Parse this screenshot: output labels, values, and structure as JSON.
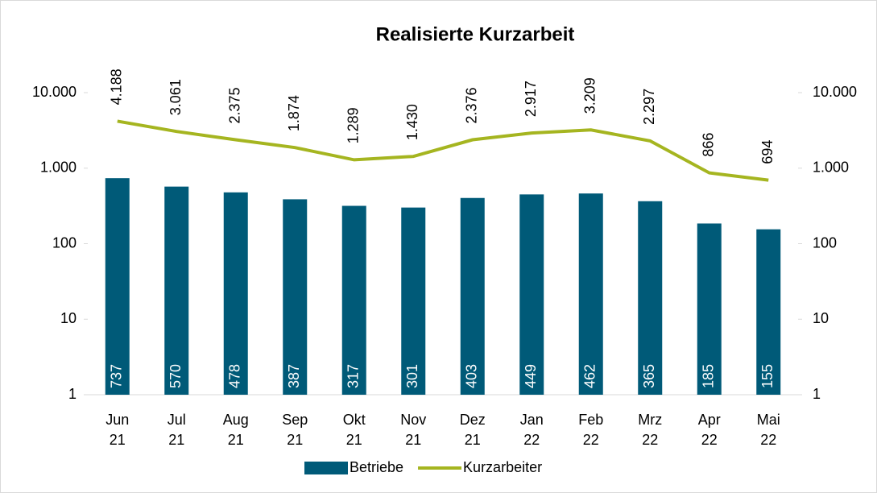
{
  "chart_data": {
    "type": "bar-line",
    "title": "Realisierte Kurzarbeit",
    "categories": [
      "Jun 21",
      "Jul 21",
      "Aug 21",
      "Sep 21",
      "Okt 21",
      "Nov 21",
      "Dez 21",
      "Jan 22",
      "Feb 22",
      "Mrz 22",
      "Apr 22",
      "Mai 22"
    ],
    "series": [
      {
        "name": "Betriebe",
        "type": "bar",
        "color": "#005a78",
        "values": [
          737,
          570,
          478,
          387,
          317,
          301,
          403,
          449,
          462,
          365,
          185,
          155
        ]
      },
      {
        "name": "Kurzarbeiter",
        "type": "line",
        "axis": "y2",
        "color": "#a5b520",
        "values": [
          4188,
          3061,
          2375,
          1874,
          1289,
          1430,
          2376,
          2917,
          3209,
          2297,
          866,
          694
        ],
        "value_labels": [
          "4.188",
          "3.061",
          "2.375",
          "1.874",
          "1.289",
          "1.430",
          "2.376",
          "2.917",
          "3.209",
          "2.297",
          "866",
          "694"
        ]
      }
    ],
    "log_scale": true,
    "ylim": [
      1,
      10000
    ],
    "yticks": [
      1,
      10,
      100,
      {
        "value": 1000,
        "label": "1.000"
      },
      {
        "value": 10000,
        "label": "10.000"
      }
    ],
    "y2lim": [
      1,
      10000
    ],
    "y2ticks": [
      1,
      10,
      100,
      {
        "value": 1000,
        "label": "1.000"
      },
      {
        "value": 10000,
        "label": "10.000"
      }
    ],
    "legend": "bottom"
  }
}
